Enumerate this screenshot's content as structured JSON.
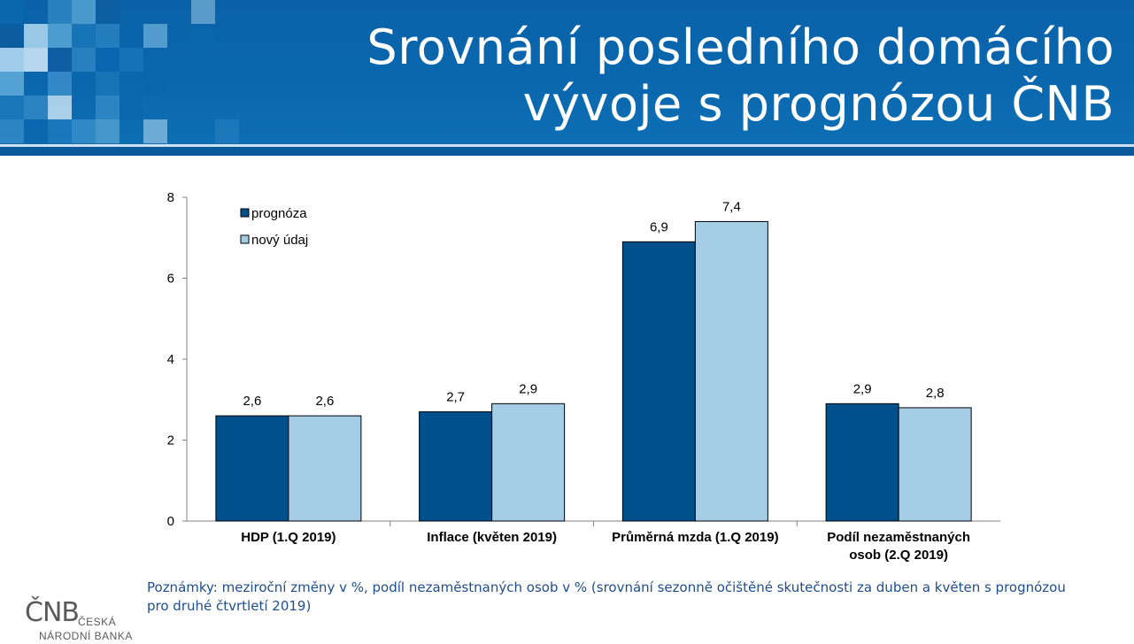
{
  "header": {
    "title": "Srovnání posledního domácího\nvývoje s prognózou ČNB"
  },
  "chart_data": {
    "type": "bar",
    "categories": [
      "HDP (1.Q 2019)",
      "Inflace (květen 2019)",
      "Průměrná mzda (1.Q 2019)",
      "Podíl nezaměstnaných\nosob (2.Q 2019)"
    ],
    "series": [
      {
        "name": "prognóza",
        "values": [
          2.6,
          2.7,
          6.9,
          2.9
        ],
        "labels": [
          "2,6",
          "2,7",
          "6,9",
          "2,9"
        ],
        "color": "#00508c"
      },
      {
        "name": "nový údaj",
        "values": [
          2.6,
          2.9,
          7.4,
          2.8
        ],
        "labels": [
          "2,6",
          "2,9",
          "7,4",
          "2,8"
        ],
        "color": "#a6cde6"
      }
    ],
    "ylim": [
      0,
      8
    ],
    "yticks": [
      0,
      2,
      4,
      6,
      8
    ],
    "grid": false,
    "legend": "top-left",
    "xlabel": "",
    "ylabel": ""
  },
  "note": "Poznámky: meziroční změny v %, podíl nezaměstnaných osob v % (srovnání sezonně očištěné skutečnosti za duben a květen s prognózou pro druhé čtvrtletí 2019)",
  "logo": {
    "mark": "ČNB",
    "line1": "ČESKÁ",
    "line2": "NÁRODNÍ BANKA"
  },
  "colors": {
    "header_bg": "#0a67ae",
    "note_text": "#1f4e8c"
  }
}
